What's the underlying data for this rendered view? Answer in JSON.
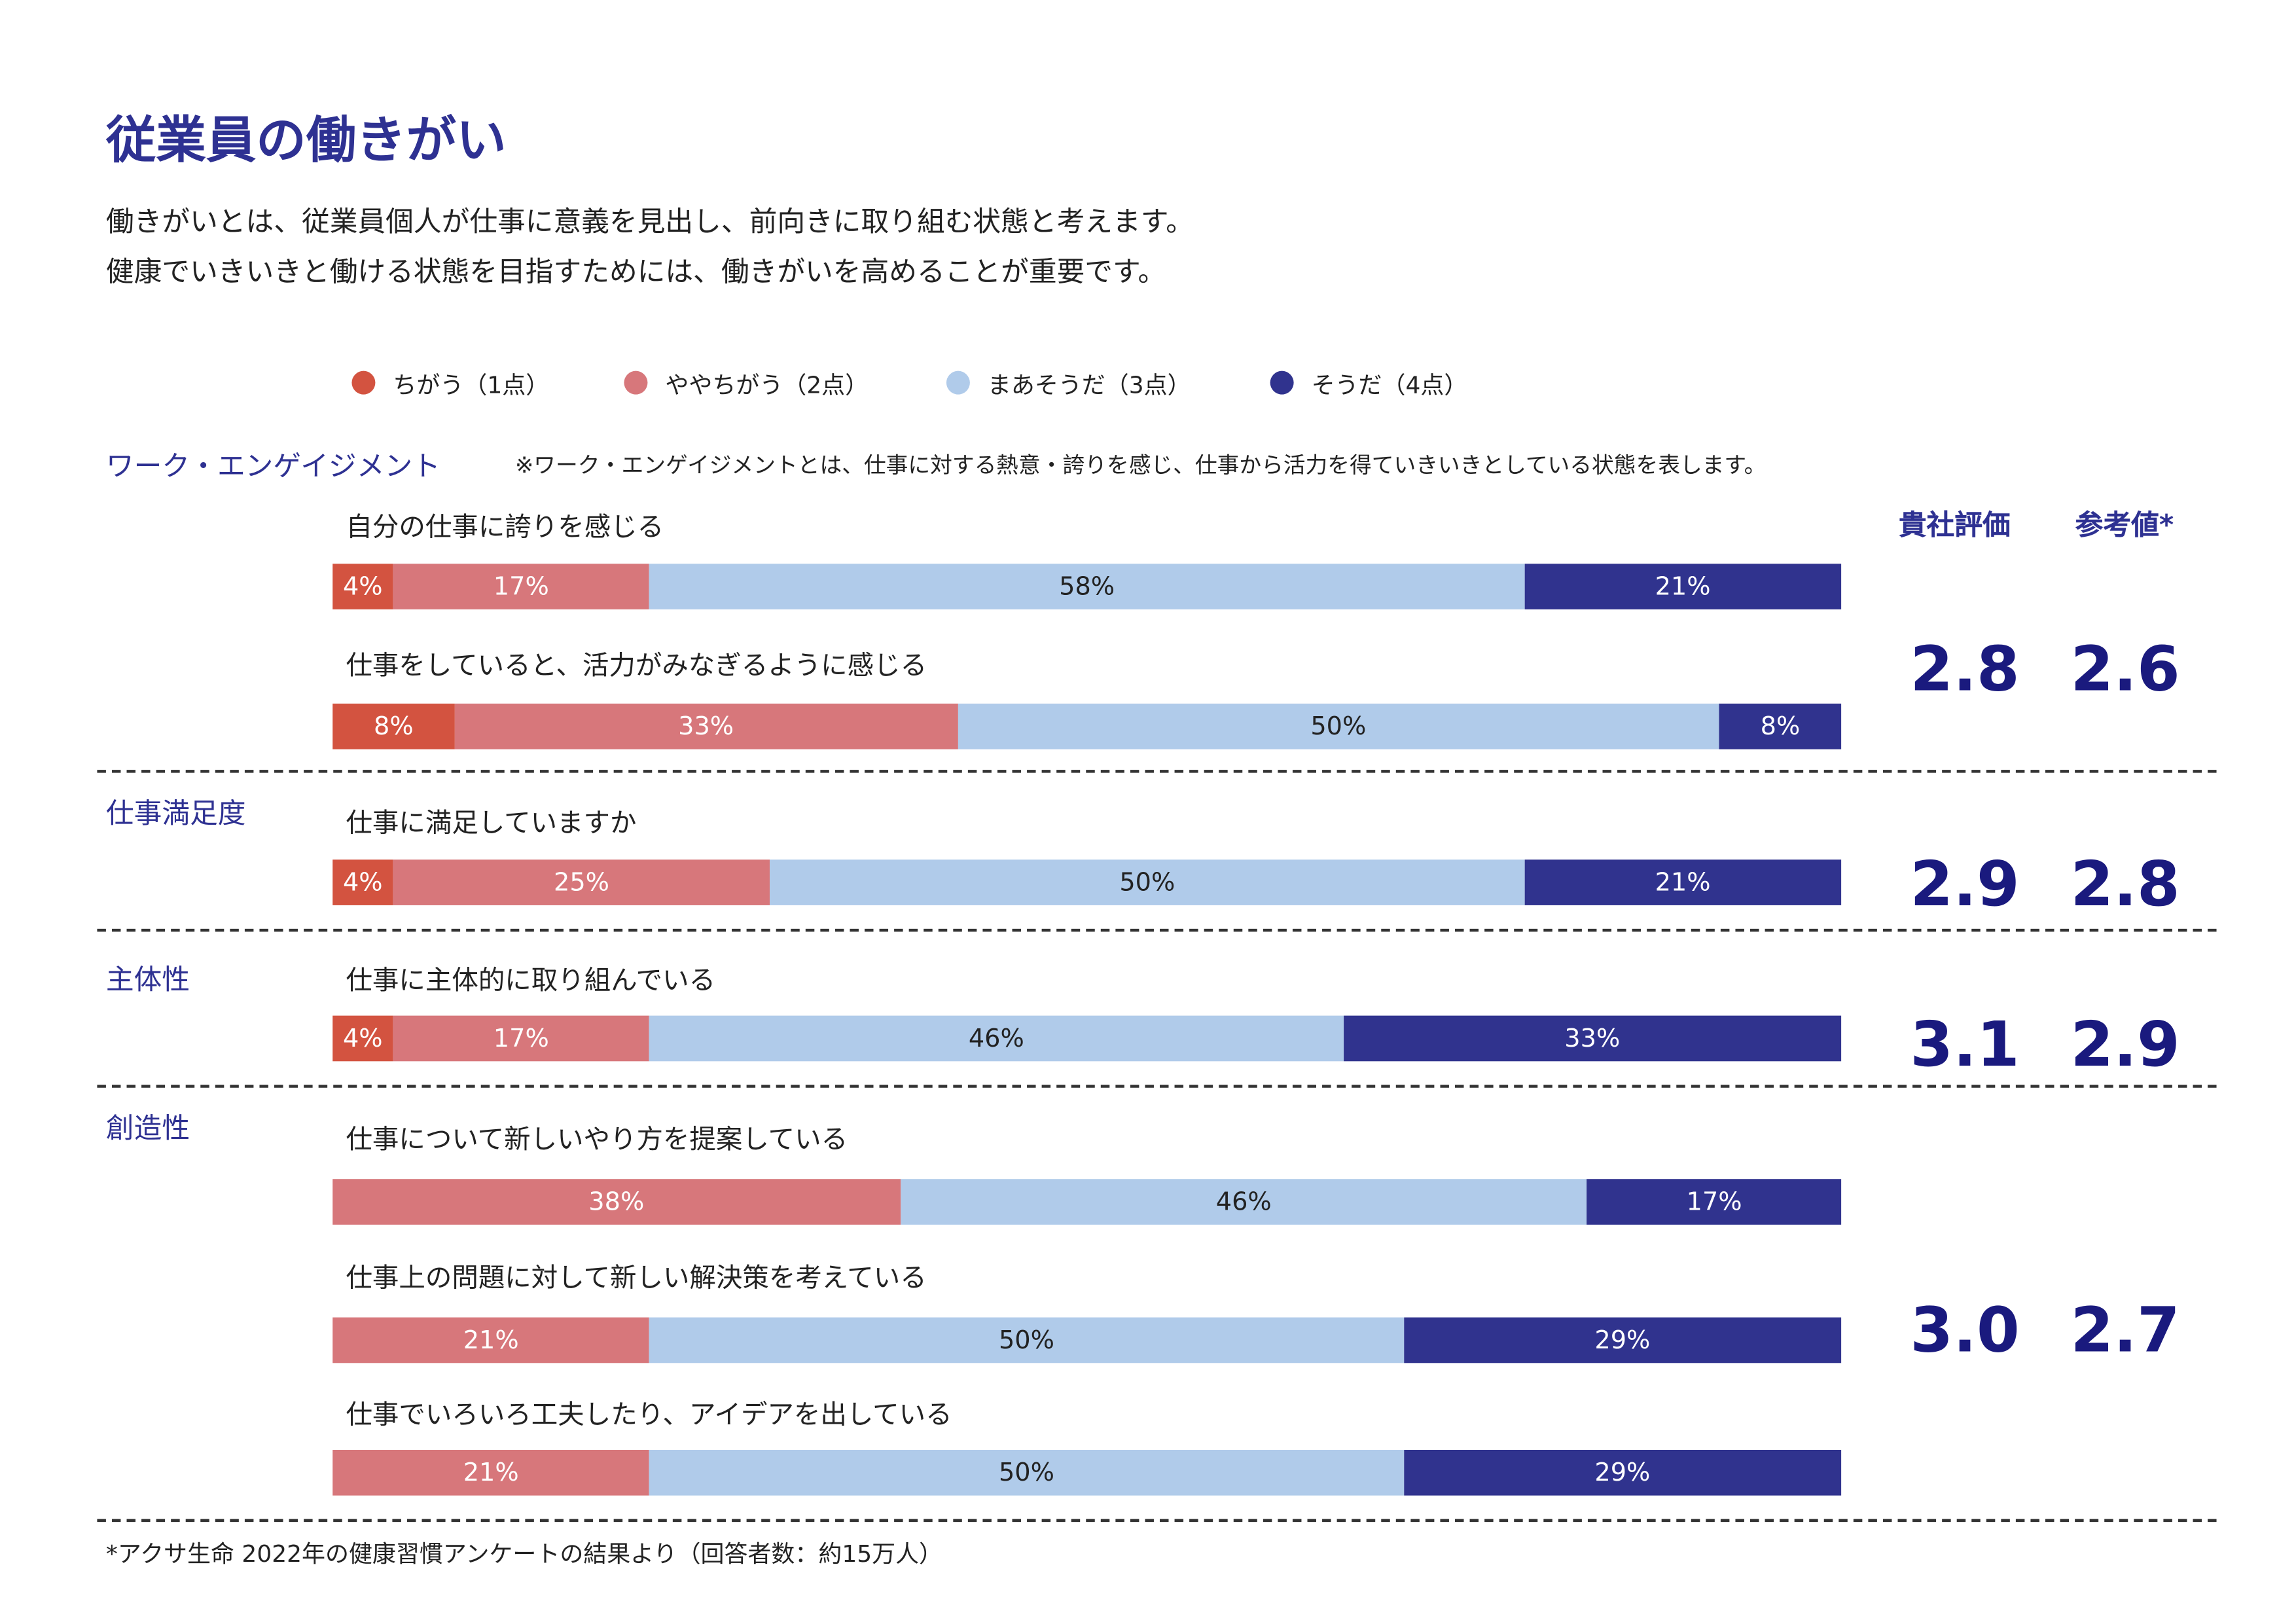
{
  "title": "従業員の働きがい",
  "description": [
    "働きがいとは、従業員個人が仕事に意義を見出し、前向きに取り組む状態と考えます。",
    "健康でいきいきと働ける状態を目指すためには、働きがいを高めることが重要です。"
  ],
  "colors": {
    "c0": "#d35340",
    "c1": "#d7777b",
    "c2": "#b0cbea",
    "c3": "#30338e",
    "accent": "#2e3192"
  },
  "chart_data": {
    "type": "bar",
    "orientation": "horizontal-stacked-100",
    "legend": [
      "ちがう（1点）",
      "ややちがう（2点）",
      "まあそうだ（3点）",
      "そうだ（4点）"
    ],
    "legend_placement": "top",
    "score_headers": [
      "貴社評価",
      "参考値*"
    ],
    "sections": [
      {
        "label": "ワーク・エンゲイジメント",
        "note": "※ワーク・エンゲイジメントとは、仕事に対する熱意・誇りを感じ、仕事から活力を得ていきいきとしている状態を表します。",
        "score": "2.8",
        "reference": "2.6",
        "questions": [
          {
            "label": "自分の仕事に誇りを感じる",
            "values": [
              4,
              17,
              58,
              21
            ]
          },
          {
            "label": "仕事をしていると、活力がみなぎるように感じる",
            "values": [
              8,
              33,
              50,
              8
            ]
          }
        ]
      },
      {
        "label": "仕事満足度",
        "score": "2.9",
        "reference": "2.8",
        "questions": [
          {
            "label": "仕事に満足していますか",
            "values": [
              4,
              25,
              50,
              21
            ]
          }
        ]
      },
      {
        "label": "主体性",
        "score": "3.1",
        "reference": "2.9",
        "questions": [
          {
            "label": "仕事に主体的に取り組んでいる",
            "values": [
              4,
              17,
              46,
              33
            ]
          }
        ]
      },
      {
        "label": "創造性",
        "score": "3.0",
        "reference": "2.7",
        "questions": [
          {
            "label": "仕事について新しいやり方を提案している",
            "values": [
              0,
              38,
              46,
              17
            ]
          },
          {
            "label": "仕事上の問題に対して新しい解決策を考えている",
            "values": [
              0,
              21,
              50,
              29
            ]
          },
          {
            "label": "仕事でいろいろ工夫したり、アイデアを出している",
            "values": [
              0,
              21,
              50,
              29
            ]
          }
        ]
      }
    ]
  },
  "footnote": "*アクサ生命 2022年の健康習慣アンケートの結果より（回答者数：約15万人）"
}
